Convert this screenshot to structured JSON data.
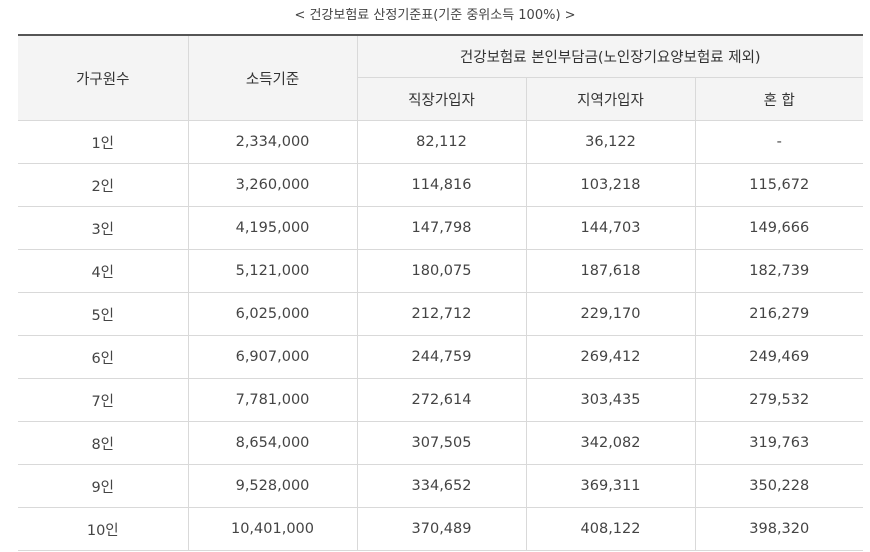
{
  "caption": "< 건강보험료 산정기준표(기준 중위소득 100%) >",
  "table": {
    "headers": {
      "household": "가구원수",
      "income": "소득기준",
      "premium_group": "건강보험료 본인부담금(노인장기요양보험료 제외)",
      "workplace": "직장가입자",
      "regional": "지역가입자",
      "mixed": "혼 합"
    },
    "rows": [
      {
        "household": "1인",
        "income": "2,334,000",
        "workplace": "82,112",
        "regional": "36,122",
        "mixed": "-"
      },
      {
        "household": "2인",
        "income": "3,260,000",
        "workplace": "114,816",
        "regional": "103,218",
        "mixed": "115,672"
      },
      {
        "household": "3인",
        "income": "4,195,000",
        "workplace": "147,798",
        "regional": "144,703",
        "mixed": "149,666"
      },
      {
        "household": "4인",
        "income": "5,121,000",
        "workplace": "180,075",
        "regional": "187,618",
        "mixed": "182,739"
      },
      {
        "household": "5인",
        "income": "6,025,000",
        "workplace": "212,712",
        "regional": "229,170",
        "mixed": "216,279"
      },
      {
        "household": "6인",
        "income": "6,907,000",
        "workplace": "244,759",
        "regional": "269,412",
        "mixed": "249,469"
      },
      {
        "household": "7인",
        "income": "7,781,000",
        "workplace": "272,614",
        "regional": "303,435",
        "mixed": "279,532"
      },
      {
        "household": "8인",
        "income": "8,654,000",
        "workplace": "307,505",
        "regional": "342,082",
        "mixed": "319,763"
      },
      {
        "household": "9인",
        "income": "9,528,000",
        "workplace": "334,652",
        "regional": "369,311",
        "mixed": "350,228"
      },
      {
        "household": "10인",
        "income": "10,401,000",
        "workplace": "370,489",
        "regional": "408,122",
        "mixed": "398,320"
      }
    ]
  }
}
